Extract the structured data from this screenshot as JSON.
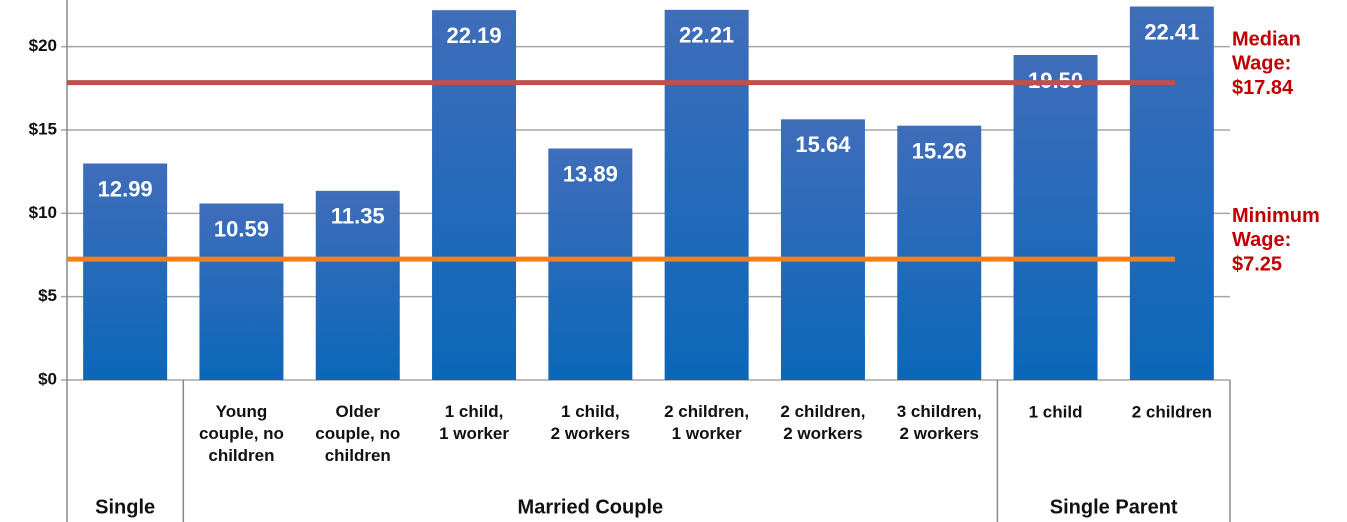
{
  "chart_data": {
    "type": "bar",
    "categories": [
      null,
      "Young\ncouple, no\nchildren",
      "Older\ncouple, no\nchildren",
      "1 child,\n1 worker",
      "1 child,\n2 workers",
      "2 children,\n1 worker",
      "2 children,\n2 workers",
      "3 children,\n2 workers",
      "1 child",
      "2 children"
    ],
    "groups": [
      {
        "label": "Single",
        "count": 1
      },
      {
        "label": "Married Couple",
        "count": 7
      },
      {
        "label": "Single Parent",
        "count": 2
      }
    ],
    "values": [
      12.99,
      10.59,
      11.35,
      22.19,
      13.89,
      22.21,
      15.64,
      15.26,
      19.5,
      22.41
    ],
    "value_labels": [
      "12.99",
      "10.59",
      "11.35",
      "22.19",
      "13.89",
      "22.21",
      "15.64",
      "15.26",
      "19.50",
      "22.41"
    ],
    "color": "#2a6cbc",
    "ylim": [
      0,
      22.8
    ],
    "yticks": [
      {
        "value": 0,
        "label": "$0"
      },
      {
        "value": 5,
        "label": "$5"
      },
      {
        "value": 10,
        "label": "$10"
      },
      {
        "value": 15,
        "label": "$15"
      },
      {
        "value": 20,
        "label": "$20"
      }
    ],
    "grid": true,
    "reference_lines": [
      {
        "name": "Median Wage:",
        "value": 17.84,
        "value_label": "$17.84",
        "color": "#c0504d"
      },
      {
        "name": "Minimum Wage:",
        "value": 7.25,
        "value_label": "$7.25",
        "color": "#f57f17"
      }
    ]
  }
}
